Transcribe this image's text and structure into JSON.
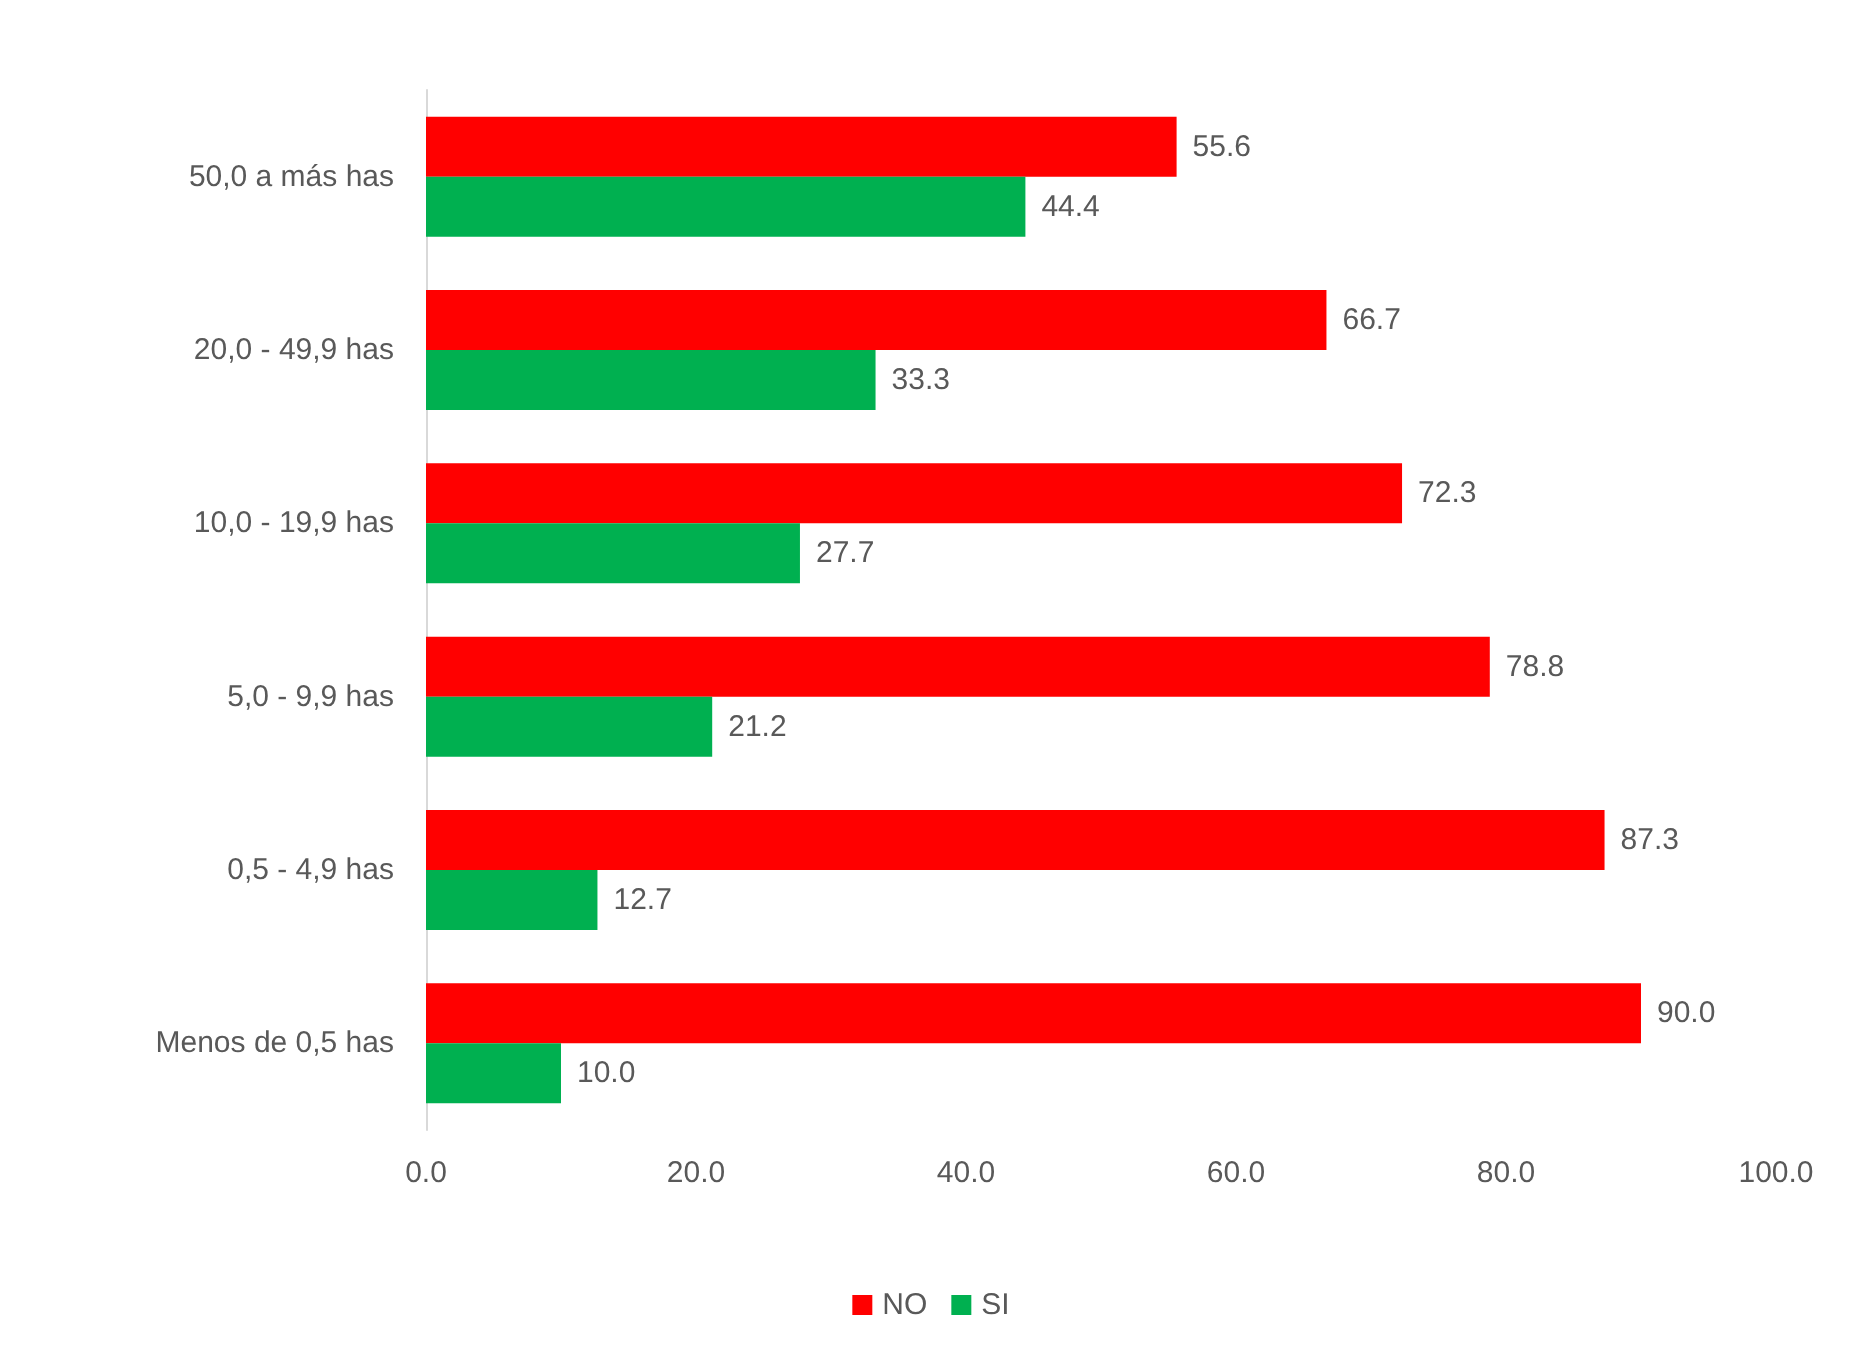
{
  "chart_data": {
    "type": "bar",
    "orientation": "horizontal",
    "categories": [
      "50,0 a más has",
      "20,0 - 49,9 has",
      "10,0 - 19,9 has",
      "5,0 - 9,9 has",
      "0,5 - 4,9 has",
      "Menos de 0,5 has"
    ],
    "series": [
      {
        "name": "NO",
        "color": "#ff0000",
        "values": [
          55.6,
          66.7,
          72.3,
          78.8,
          87.3,
          90.0
        ],
        "value_labels": [
          "55.6",
          "66.7",
          "72.3",
          "78.8",
          "87.3",
          "90.0"
        ]
      },
      {
        "name": "SI",
        "color": "#00b050",
        "values": [
          44.4,
          33.3,
          27.7,
          21.2,
          12.7,
          10.0
        ],
        "value_labels": [
          "44.4",
          "33.3",
          "27.7",
          "21.2",
          "12.7",
          "10.0"
        ]
      }
    ],
    "xlim": [
      0,
      100
    ],
    "xticks": [
      {
        "value": 0,
        "label": "0.0"
      },
      {
        "value": 20,
        "label": "20.0"
      },
      {
        "value": 40,
        "label": "40.0"
      },
      {
        "value": 60,
        "label": "60.0"
      },
      {
        "value": 80,
        "label": "80.0"
      },
      {
        "value": 100,
        "label": "100.0"
      }
    ],
    "grid": false,
    "legend": "bottom"
  }
}
